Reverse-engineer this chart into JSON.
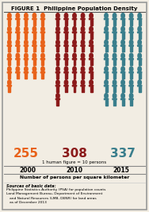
{
  "title": "FIGURE 1  Philippine Population Density",
  "years": [
    "2000",
    "2010",
    "2015"
  ],
  "values": [
    255,
    308,
    337
  ],
  "colors": [
    "#E8621A",
    "#8B1A1A",
    "#3A7E8C"
  ],
  "figure_counts": [
    26,
    31,
    34
  ],
  "max_per_row": 5,
  "note": "1 human figure = 10 persons",
  "ylabel": "Number of persons per square kilometer",
  "sources_title": "Sources of basic data:",
  "sources_text": "Philippine Statistics Authority (PSA) for population counts\nLand Management Bureau, Department of Environment\n   and Natural Resources (LMB, DENR) for land areas\n   as of December 2013",
  "bg_color": "#F2EDE3",
  "border_color": "#999999"
}
